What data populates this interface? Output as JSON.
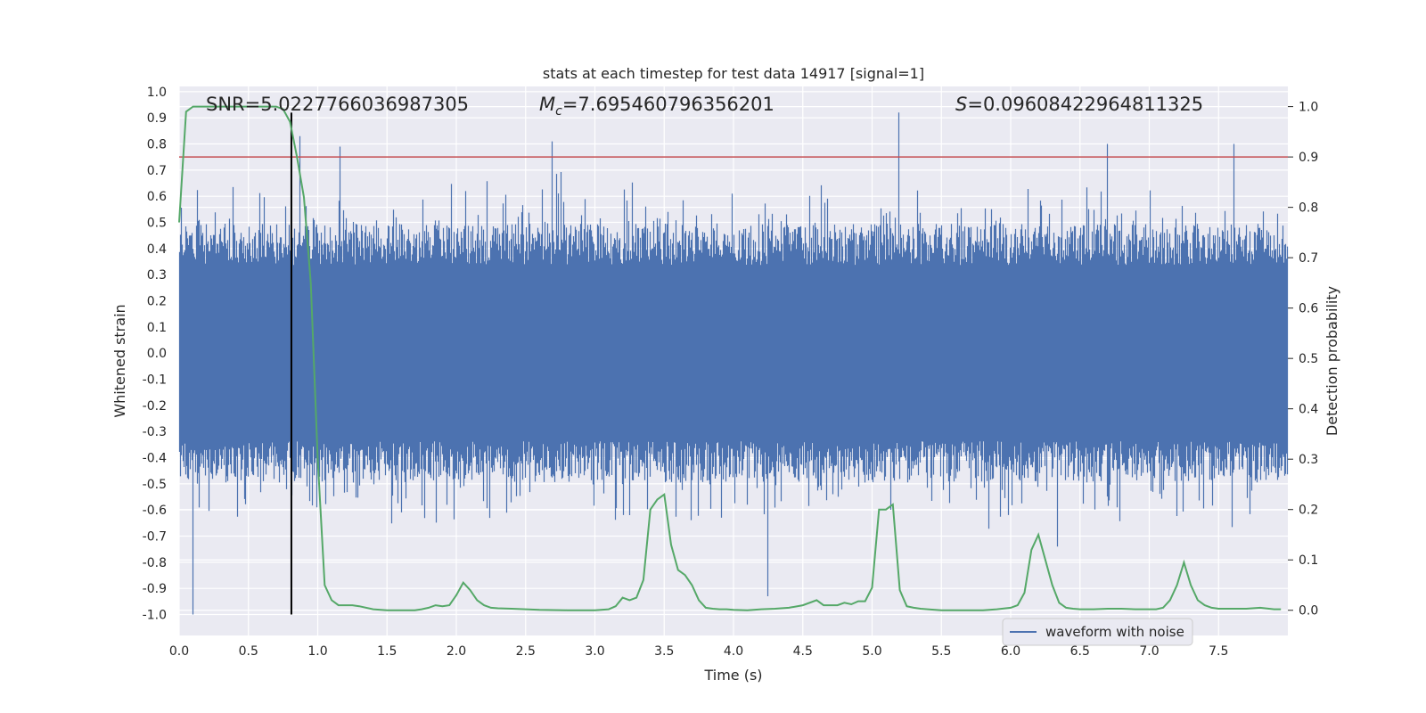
{
  "chart_data": {
    "type": "line",
    "title": "stats at each timestep for test data 14917 [signal=1]",
    "xlabel": "Time (s)",
    "ylabel_left": "Whitened strain",
    "ylabel_right": "Detection probability",
    "xlim": [
      0.0,
      8.0
    ],
    "ylim_left": [
      -1.08,
      1.02
    ],
    "ylim_right": [
      -0.05,
      1.04
    ],
    "x_ticks": [
      "0.0",
      "0.5",
      "1.0",
      "1.5",
      "2.0",
      "2.5",
      "3.0",
      "3.5",
      "4.0",
      "4.5",
      "5.0",
      "5.5",
      "6.0",
      "6.5",
      "7.0",
      "7.5"
    ],
    "y_left_ticks": [
      "1.0",
      "0.9",
      "0.8",
      "0.7",
      "0.6",
      "0.5",
      "0.4",
      "0.3",
      "0.2",
      "0.1",
      "0.0",
      "-0.1",
      "-0.2",
      "-0.3",
      "-0.4",
      "-0.5",
      "-0.6",
      "-0.7",
      "-0.8",
      "-0.9",
      "-1.0"
    ],
    "y_right_ticks": [
      "1.0",
      "0.9",
      "0.8",
      "0.7",
      "0.6",
      "0.5",
      "0.4",
      "0.3",
      "0.2",
      "0.1",
      "0.0"
    ],
    "annotations": {
      "snr": "SNR=5.0227766036987305",
      "mc_symbol": "M",
      "mc_sub": "c",
      "mc_value": "=7.695460796356201",
      "s_symbol": "S",
      "s_value": "=0.09608422964811325"
    },
    "threshold_line": {
      "axis": "right",
      "value": 0.9,
      "color": "#c44e52"
    },
    "event_marker": {
      "x": 0.81,
      "color": "#000000"
    },
    "series": [
      {
        "name": "waveform with noise",
        "axis": "left",
        "color": "#4c72b0",
        "description_values": {
          "envelope_typical": [
            -0.45,
            0.45
          ],
          "spikes": [
            {
              "x": 0.1,
              "y": -1.0
            },
            {
              "x": 0.87,
              "y": 0.83
            },
            {
              "x": 1.16,
              "y": 0.79
            },
            {
              "x": 2.69,
              "y": 0.81
            },
            {
              "x": 4.25,
              "y": -0.93
            },
            {
              "x": 5.19,
              "y": 0.92
            },
            {
              "x": 6.34,
              "y": -0.74
            },
            {
              "x": 6.7,
              "y": 0.8
            },
            {
              "x": 7.61,
              "y": 0.8
            }
          ]
        }
      },
      {
        "name": "",
        "axis": "right",
        "color": "#55a868",
        "x": [
          0.0,
          0.05,
          0.1,
          0.2,
          0.3,
          0.4,
          0.5,
          0.6,
          0.7,
          0.75,
          0.8,
          0.85,
          0.9,
          0.95,
          1.0,
          1.05,
          1.1,
          1.15,
          1.2,
          1.25,
          1.3,
          1.4,
          1.5,
          1.6,
          1.7,
          1.75,
          1.8,
          1.85,
          1.9,
          1.95,
          2.0,
          2.05,
          2.1,
          2.15,
          2.2,
          2.25,
          2.3,
          2.4,
          2.5,
          2.6,
          2.8,
          3.0,
          3.1,
          3.15,
          3.2,
          3.25,
          3.3,
          3.35,
          3.4,
          3.45,
          3.5,
          3.55,
          3.6,
          3.65,
          3.7,
          3.75,
          3.8,
          3.85,
          3.9,
          3.95,
          4.0,
          4.1,
          4.2,
          4.3,
          4.4,
          4.5,
          4.6,
          4.65,
          4.7,
          4.75,
          4.8,
          4.85,
          4.9,
          4.95,
          5.0,
          5.05,
          5.1,
          5.15,
          5.2,
          5.25,
          5.3,
          5.35,
          5.4,
          5.5,
          5.6,
          5.7,
          5.8,
          5.9,
          6.0,
          6.05,
          6.1,
          6.15,
          6.2,
          6.25,
          6.3,
          6.35,
          6.4,
          6.45,
          6.5,
          6.55,
          6.6,
          6.7,
          6.8,
          6.9,
          7.0,
          7.05,
          7.1,
          7.15,
          7.2,
          7.25,
          7.3,
          7.35,
          7.4,
          7.45,
          7.5,
          7.55,
          7.6,
          7.7,
          7.8,
          7.9,
          7.95
        ],
        "values": [
          0.77,
          0.99,
          1.0,
          1.0,
          1.0,
          1.0,
          1.0,
          1.0,
          1.0,
          0.995,
          0.97,
          0.9,
          0.82,
          0.65,
          0.3,
          0.05,
          0.02,
          0.01,
          0.01,
          0.01,
          0.008,
          0.002,
          0.0,
          0.0,
          0.0,
          0.002,
          0.005,
          0.01,
          0.008,
          0.01,
          0.03,
          0.055,
          0.04,
          0.02,
          0.01,
          0.005,
          0.004,
          0.003,
          0.002,
          0.001,
          0.0,
          0.0,
          0.002,
          0.008,
          0.025,
          0.02,
          0.025,
          0.06,
          0.2,
          0.22,
          0.23,
          0.13,
          0.08,
          0.07,
          0.05,
          0.02,
          0.005,
          0.003,
          0.002,
          0.002,
          0.001,
          0.0,
          0.002,
          0.003,
          0.005,
          0.01,
          0.02,
          0.01,
          0.01,
          0.01,
          0.015,
          0.012,
          0.018,
          0.018,
          0.045,
          0.2,
          0.2,
          0.21,
          0.04,
          0.008,
          0.005,
          0.003,
          0.002,
          0.0,
          0.0,
          0.0,
          0.0,
          0.002,
          0.005,
          0.01,
          0.035,
          0.12,
          0.15,
          0.1,
          0.05,
          0.015,
          0.005,
          0.003,
          0.002,
          0.002,
          0.002,
          0.003,
          0.003,
          0.002,
          0.002,
          0.002,
          0.005,
          0.02,
          0.05,
          0.095,
          0.05,
          0.02,
          0.01,
          0.005,
          0.003,
          0.003,
          0.003,
          0.003,
          0.005,
          0.002,
          0.002
        ]
      }
    ],
    "legend": {
      "placement": "lower-right",
      "label": "waveform with noise"
    }
  }
}
